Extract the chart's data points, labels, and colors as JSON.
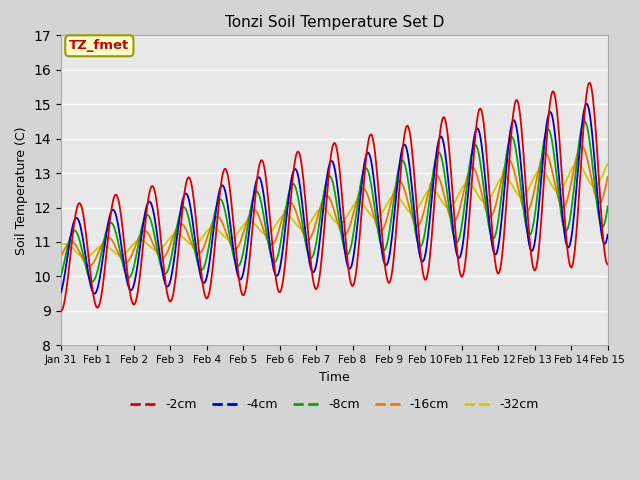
{
  "title": "Tonzi Soil Temperature Set D",
  "xlabel": "Time",
  "ylabel": "Soil Temperature (C)",
  "ylim": [
    8.0,
    17.0
  ],
  "yticks": [
    8.0,
    9.0,
    10.0,
    11.0,
    12.0,
    13.0,
    14.0,
    15.0,
    16.0,
    17.0
  ],
  "xlim": [
    0,
    15
  ],
  "xtick_labels": [
    "Jan 31",
    "Feb 1",
    "Feb 2",
    "Feb 3",
    "Feb 4",
    "Feb 5",
    "Feb 6",
    "Feb 7",
    "Feb 8",
    "Feb 9",
    "Feb 10",
    "Feb 11",
    "Feb 12",
    "Feb 13",
    "Feb 14",
    "Feb 15"
  ],
  "legend_labels": [
    "-2cm",
    "-4cm",
    "-8cm",
    "-16cm",
    "-32cm"
  ],
  "line_colors": [
    "#dd0000",
    "#0000cc",
    "#00aa00",
    "#ee7700",
    "#cccc00"
  ],
  "annotation_text": "TZ_fmet",
  "annotation_fg": "#cc0000",
  "annotation_bg": "#ffffcc",
  "annotation_edge": "#999900",
  "plot_bg": "#e8e8e8",
  "fig_bg": "#d4d4d4",
  "grid_color": "#ffffff",
  "line_width": 1.3,
  "title_fontsize": 11,
  "label_fontsize": 9,
  "tick_fontsize": 7.5,
  "legend_fontsize": 9
}
